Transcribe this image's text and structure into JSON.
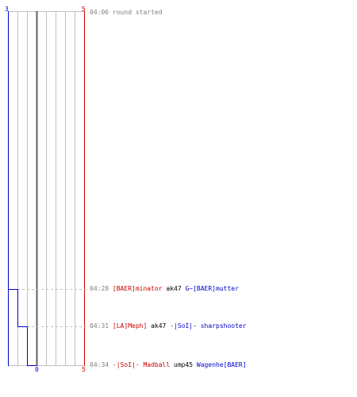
{
  "scoreboard": {
    "left_score_top": "3",
    "right_score_top": "5",
    "left_score_bottom": "0",
    "right_score_bottom": "5",
    "left_color": "#0000cc",
    "right_color": "#cc0000"
  },
  "events": [
    {
      "time": "04:06",
      "text": "round started"
    },
    {
      "time": "04:28",
      "killer": "[BAER]minator",
      "killer_team": "red",
      "weapon": "ak47",
      "victim": "G~[BAER]mutter",
      "victim_team": "blue"
    },
    {
      "time": "04:31",
      "killer": "[LA]Meph]",
      "killer_team": "red",
      "weapon": "ak47",
      "victim": "-|SoI|- sharpshooter",
      "victim_team": "blue"
    },
    {
      "time": "04:34",
      "killer": "-|SoI|- Madball",
      "killer_team": "red",
      "weapon": "ump45",
      "victim": "Wagenhe[BAER]",
      "victim_team": "blue"
    }
  ]
}
